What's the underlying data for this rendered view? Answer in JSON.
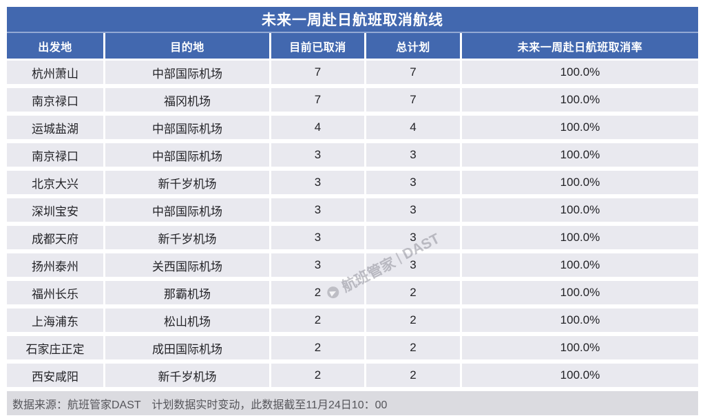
{
  "title": "未来一周赴日航班取消航线",
  "table": {
    "headers": [
      "出发地",
      "目的地",
      "目前已取消",
      "总计划",
      "未来一周赴日航班取消率"
    ],
    "rows": [
      {
        "origin": "杭州萧山",
        "destination": "中部国际机场",
        "cancelled": "7",
        "planned": "7",
        "rate": "100.0%"
      },
      {
        "origin": "南京禄口",
        "destination": "福冈机场",
        "cancelled": "7",
        "planned": "7",
        "rate": "100.0%"
      },
      {
        "origin": "运城盐湖",
        "destination": "中部国际机场",
        "cancelled": "4",
        "planned": "4",
        "rate": "100.0%"
      },
      {
        "origin": "南京禄口",
        "destination": "中部国际机场",
        "cancelled": "3",
        "planned": "3",
        "rate": "100.0%"
      },
      {
        "origin": "北京大兴",
        "destination": "新千岁机场",
        "cancelled": "3",
        "planned": "3",
        "rate": "100.0%"
      },
      {
        "origin": "深圳宝安",
        "destination": "中部国际机场",
        "cancelled": "3",
        "planned": "3",
        "rate": "100.0%"
      },
      {
        "origin": "成都天府",
        "destination": "新千岁机场",
        "cancelled": "3",
        "planned": "3",
        "rate": "100.0%"
      },
      {
        "origin": "扬州泰州",
        "destination": "关西国际机场",
        "cancelled": "3",
        "planned": "3",
        "rate": "100.0%"
      },
      {
        "origin": "福州长乐",
        "destination": "那霸机场",
        "cancelled": "2",
        "planned": "2",
        "rate": "100.0%"
      },
      {
        "origin": "上海浦东",
        "destination": "松山机场",
        "cancelled": "2",
        "planned": "2",
        "rate": "100.0%"
      },
      {
        "origin": "石家庄正定",
        "destination": "成田国际机场",
        "cancelled": "2",
        "planned": "2",
        "rate": "100.0%"
      },
      {
        "origin": "西安咸阳",
        "destination": "新千岁机场",
        "cancelled": "2",
        "planned": "2",
        "rate": "100.0%"
      }
    ]
  },
  "footer": {
    "text": "数据来源：航班管家DAST　计划数据实时变动，此数据截至11月24日10：00"
  },
  "watermark": {
    "text": "航班管家",
    "brand": "DAST"
  },
  "colors": {
    "header_blue": "#4268AF",
    "divider_blue": "#93A9D4",
    "row_gray": "#E9E9EF",
    "footer_gray": "#DBDBE0"
  },
  "chart_data": {
    "type": "table",
    "title": "未来一周赴日航班取消航线",
    "columns": [
      "出发地",
      "目的地",
      "目前已取消",
      "总计划",
      "未来一周赴日航班取消率"
    ],
    "rows": [
      [
        "杭州萧山",
        "中部国际机场",
        7,
        7,
        "100.0%"
      ],
      [
        "南京禄口",
        "福冈机场",
        7,
        7,
        "100.0%"
      ],
      [
        "运城盐湖",
        "中部国际机场",
        4,
        4,
        "100.0%"
      ],
      [
        "南京禄口",
        "中部国际机场",
        3,
        3,
        "100.0%"
      ],
      [
        "北京大兴",
        "新千岁机场",
        3,
        3,
        "100.0%"
      ],
      [
        "深圳宝安",
        "中部国际机场",
        3,
        3,
        "100.0%"
      ],
      [
        "成都天府",
        "新千岁机场",
        3,
        3,
        "100.0%"
      ],
      [
        "扬州泰州",
        "关西国际机场",
        3,
        3,
        "100.0%"
      ],
      [
        "福州长乐",
        "那霸机场",
        2,
        2,
        "100.0%"
      ],
      [
        "上海浦东",
        "松山机场",
        2,
        2,
        "100.0%"
      ],
      [
        "石家庄正定",
        "成田国际机场",
        2,
        2,
        "100.0%"
      ],
      [
        "西安咸阳",
        "新千岁机场",
        2,
        2,
        "100.0%"
      ]
    ],
    "source_note": "数据来源：航班管家DAST　计划数据实时变动，此数据截至11月24日10：00"
  }
}
